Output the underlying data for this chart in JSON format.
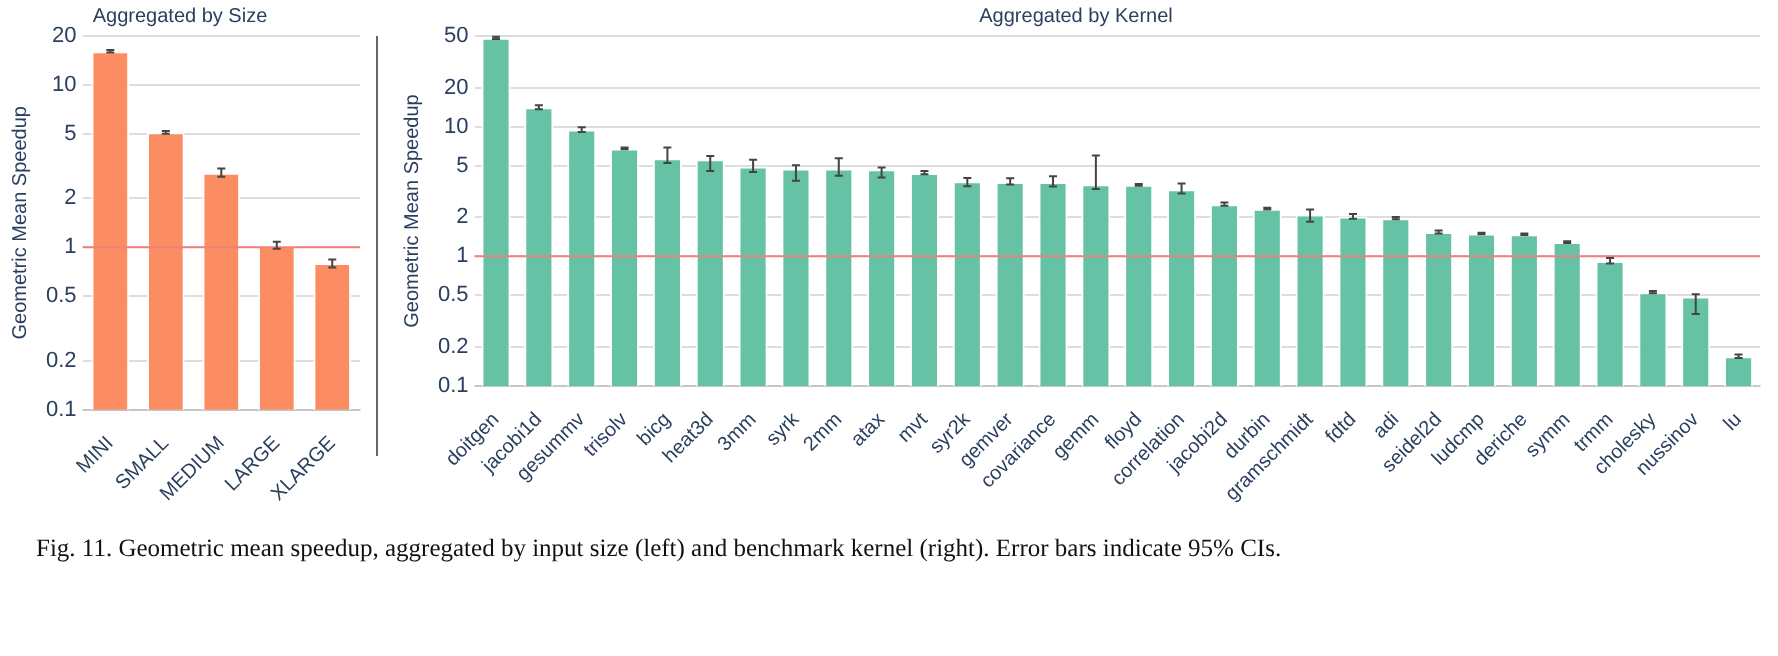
{
  "chart_data": [
    {
      "type": "bar",
      "title": "Aggregated by Size",
      "ylabel": "Geometric Mean Speedup",
      "categories": [
        "MINI",
        "SMALL",
        "MEDIUM",
        "LARGE",
        "XLARGE"
      ],
      "values": [
        16.1,
        5.1,
        2.88,
        1.03,
        0.8
      ],
      "color": "#fc8d62",
      "errors": [
        [
          15.8,
          16.4
        ],
        [
          5.0,
          5.2
        ],
        [
          2.72,
          3.06
        ],
        [
          0.98,
          1.08
        ],
        [
          0.75,
          0.84
        ]
      ],
      "log": true,
      "ylim": [
        0.1,
        20
      ],
      "yticks": [
        0.1,
        0.2,
        0.5,
        1,
        2,
        5,
        10,
        20
      ],
      "grid": "y",
      "legend": false,
      "ref_lines": [
        {
          "axis": "y",
          "value": 1,
          "color": "#f08080"
        }
      ]
    },
    {
      "type": "bar",
      "title": "Aggregated by Kernel",
      "ylabel": "Geometric Mean Speedup",
      "categories": [
        "doitgen",
        "jacobi1d",
        "gesummv",
        "trisolv",
        "bicg",
        "heat3d",
        "3mm",
        "syrk",
        "2mm",
        "atax",
        "mvt",
        "syr2k",
        "gemver",
        "covariance",
        "gemm",
        "floyd",
        "correlation",
        "jacobi2d",
        "durbin",
        "gramschmidt",
        "fdtd",
        "adi",
        "seidel2d",
        "ludcmp",
        "deriche",
        "symm",
        "trmm",
        "cholesky",
        "nussinov",
        "lu"
      ],
      "values": [
        48.4,
        14.1,
        9.5,
        6.8,
        5.7,
        5.6,
        4.94,
        4.75,
        4.75,
        4.7,
        4.4,
        3.79,
        3.75,
        3.74,
        3.6,
        3.56,
        3.29,
        2.52,
        2.33,
        2.1,
        2.03,
        1.97,
        1.54,
        1.5,
        1.48,
        1.29,
        0.92,
        0.53,
        0.49,
        0.17
      ],
      "color": "#66c2a5",
      "errors": [
        [
          47.5,
          49.3
        ],
        [
          13.6,
          14.6
        ],
        [
          9.1,
          9.9
        ],
        [
          6.7,
          6.9
        ],
        [
          5.24,
          6.9
        ],
        [
          4.56,
          5.95
        ],
        [
          4.48,
          5.55
        ],
        [
          3.83,
          5.04
        ],
        [
          4.18,
          5.72
        ],
        [
          4.05,
          4.84
        ],
        [
          4.3,
          4.55
        ],
        [
          3.47,
          4.02
        ],
        [
          3.58,
          4.0
        ],
        [
          3.45,
          4.15
        ],
        [
          3.3,
          6.0
        ],
        [
          3.5,
          3.62
        ],
        [
          3.05,
          3.65
        ],
        [
          2.46,
          2.6
        ],
        [
          2.3,
          2.37
        ],
        [
          1.85,
          2.3
        ],
        [
          1.95,
          2.12
        ],
        [
          1.93,
          2.01
        ],
        [
          1.5,
          1.58
        ],
        [
          1.48,
          1.52
        ],
        [
          1.46,
          1.5
        ],
        [
          1.27,
          1.31
        ],
        [
          0.88,
          0.97
        ],
        [
          0.52,
          0.54
        ],
        [
          0.36,
          0.51
        ],
        [
          0.165,
          0.175
        ]
      ],
      "log": true,
      "ylim": [
        0.1,
        50
      ],
      "yticks": [
        0.1,
        0.2,
        0.5,
        1,
        2,
        5,
        10,
        20,
        50
      ],
      "grid": "y",
      "legend": false,
      "ref_lines": [
        {
          "axis": "y",
          "value": 1,
          "color": "#f08080"
        }
      ],
      "annotations": [
        "Fig. 11.  Geometric mean speedup, aggregated by input size (left) and benchmark kernel (right). Error bars indicate 95% CIs."
      ]
    }
  ]
}
